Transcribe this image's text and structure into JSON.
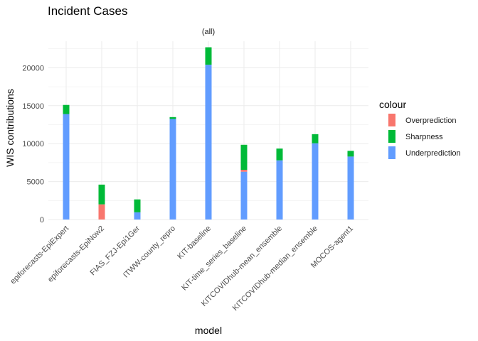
{
  "chart_data": {
    "type": "bar",
    "stacked": true,
    "title": "Incident Cases",
    "facet_label": "(all)",
    "xlabel": "model",
    "ylabel": "WIS contributions",
    "ylim": [
      0,
      23500
    ],
    "y_ticks": [
      0,
      5000,
      10000,
      15000,
      20000
    ],
    "y_tick_labels": [
      "0",
      "5000",
      "10000",
      "15000",
      "20000"
    ],
    "grid": true,
    "legend": {
      "title": "colour",
      "placement": "right",
      "entries": [
        "Overprediction",
        "Sharpness",
        "Underprediction"
      ]
    },
    "categories": [
      "epiforecasts-EpiExpert",
      "epiforecasts-EpiNow2",
      "FIAS_FZJ-Epi1Ger",
      "ITWW-county_repro",
      "KIT-baseline",
      "KIT-time_series_baseline",
      "KITCOVIDhub-mean_ensemble",
      "KITCOVIDhub-median_ensemble",
      "MOCOS-agent1"
    ],
    "series": [
      {
        "name": "Underprediction",
        "color": "#619CFF",
        "values": [
          13900,
          0,
          950,
          13250,
          20400,
          6300,
          7800,
          10050,
          8300
        ]
      },
      {
        "name": "Overprediction",
        "color": "#F8766D",
        "values": [
          0,
          2000,
          0,
          0,
          0,
          250,
          0,
          0,
          0
        ]
      },
      {
        "name": "Sharpness",
        "color": "#00BA38",
        "values": [
          1200,
          2600,
          1700,
          250,
          2300,
          3300,
          1550,
          1200,
          750
        ]
      }
    ]
  }
}
